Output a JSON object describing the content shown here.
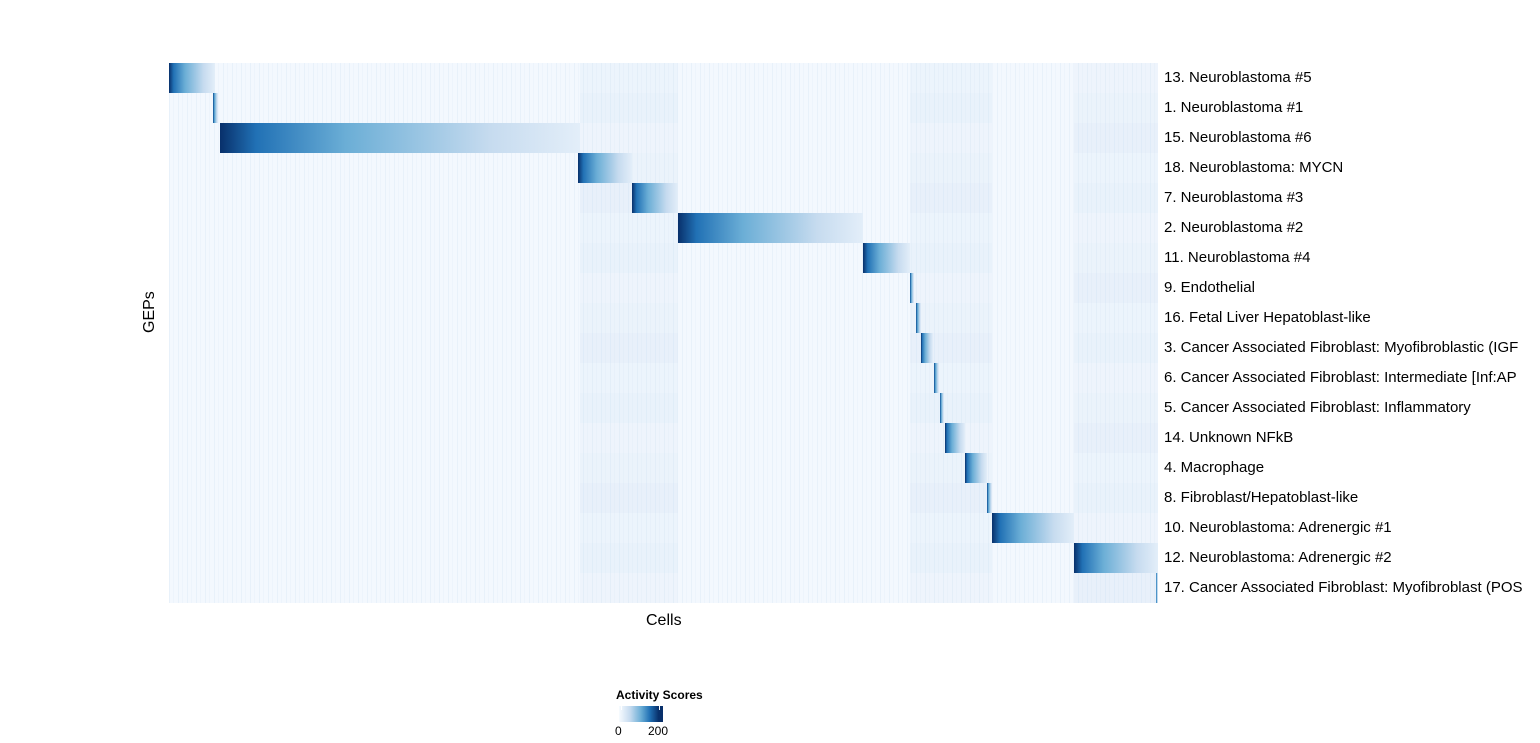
{
  "chart_data": {
    "type": "heatmap",
    "xlabel": "Cells",
    "ylabel": "GEPs",
    "rows": [
      "13. Neuroblastoma #5",
      "1. Neuroblastoma #1",
      "15. Neuroblastoma #6",
      "18. Neuroblastoma: MYCN",
      "7. Neuroblastoma #3",
      "2. Neuroblastoma #2",
      "11. Neuroblastoma #4",
      "9. Endothelial",
      "16. Fetal Liver Hepatoblast-like",
      "3. Cancer Associated Fibroblast: Myofibroblastic (IGF",
      "6. Cancer Associated Fibroblast: Intermediate [Inf:AP",
      "5. Cancer Associated Fibroblast: Inflammatory",
      "14. Unknown NFkB",
      "4. Macrophage",
      "8. Fibroblast/Hepatoblast-like",
      "10. Neuroblastoma: Adrenergic #1",
      "12. Neuroblastoma: Adrenergic #2",
      "17. Cancer Associated Fibroblast: Myofibroblast (POS"
    ],
    "legend": {
      "title": "Activity Scores",
      "ticks": [
        "0",
        "200"
      ],
      "placement": "bottom"
    },
    "colorscale": [
      "#f7fbff",
      "#c6dbef",
      "#6baed6",
      "#2171b5",
      "#08306b"
    ]
  }
}
